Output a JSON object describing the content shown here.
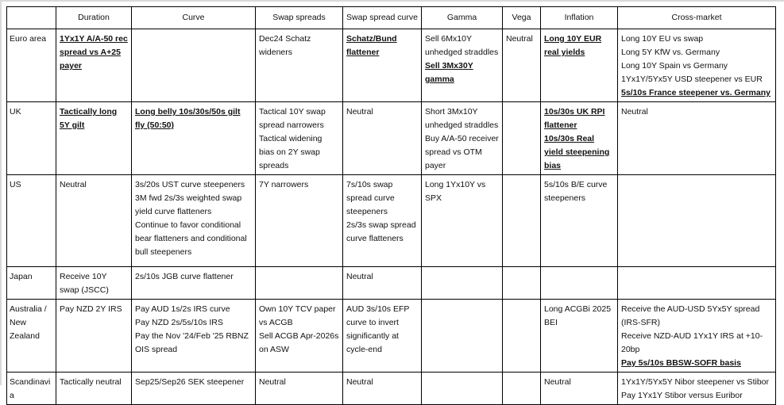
{
  "headers": [
    "",
    "Duration",
    "Curve",
    "Swap spreads",
    "Swap spread curve",
    "Gamma",
    "Vega",
    "Inflation",
    "Cross-market"
  ],
  "rows": [
    {
      "region": "Euro area",
      "cells": [
        [
          {
            "text": "1Yx1Y A/A-50 rec spread vs A+25 payer",
            "bold": true
          }
        ],
        [],
        [
          {
            "text": "Dec24 Schatz wideners",
            "bold": false
          }
        ],
        [
          {
            "text": "Schatz/Bund flattener",
            "bold": true
          }
        ],
        [
          {
            "text": "Sell 6Mx10Y unhedged straddles",
            "bold": false
          },
          {
            "text": "Sell 3Mx30Y gamma",
            "bold": true
          }
        ],
        [
          {
            "text": "Neutral",
            "bold": false
          }
        ],
        [
          {
            "text": "Long 10Y EUR real yields",
            "bold": true
          }
        ],
        [
          {
            "text": "Long 10Y EU vs swap",
            "bold": false
          },
          {
            "text": "Long 5Y KfW vs. Germany",
            "bold": false
          },
          {
            "text": "Long 10Y Spain vs Germany",
            "bold": false
          },
          {
            "text": "1Yx1Y/5Yx5Y USD steepener vs EUR",
            "bold": false
          },
          {
            "text": "5s/10s France steepener vs. Germany",
            "bold": true
          }
        ]
      ]
    },
    {
      "region": "UK",
      "cells": [
        [
          {
            "text": "Tactically long 5Y gilt",
            "bold": true
          }
        ],
        [
          {
            "text": "Long belly 10s/30s/50s gilt fly (50:50)",
            "bold": true
          }
        ],
        [
          {
            "text": "Tactical 10Y swap spread narrowers",
            "bold": false
          },
          {
            "text": "Tactical widening bias on 2Y swap spreads",
            "bold": false
          }
        ],
        [
          {
            "text": "Neutral",
            "bold": false
          }
        ],
        [
          {
            "text": "Short 3Mx10Y unhedged straddles",
            "bold": false
          },
          {
            "text": "Buy A/A-50 receiver spread vs OTM payer",
            "bold": false
          }
        ],
        [],
        [
          {
            "text": "10s/30s UK RPI flattener",
            "bold": true
          },
          {
            "text": "10s/30s Real yield steepening bias",
            "bold": true
          }
        ],
        [
          {
            "text": "Neutral",
            "bold": false
          }
        ]
      ]
    },
    {
      "region": "US",
      "cells": [
        [
          {
            "text": "Neutral",
            "bold": false
          }
        ],
        [
          {
            "text": "3s/20s UST curve steepeners",
            "bold": false
          },
          {
            "text": "3M fwd 2s/3s weighted swap yield curve flatteners",
            "bold": false
          },
          {
            "text": "Continue to favor conditional bear flatteners and conditional bull steepeners",
            "bold": false
          }
        ],
        [
          {
            "text": "7Y narrowers",
            "bold": false
          }
        ],
        [
          {
            "text": "7s/10s swap spread curve steepeners",
            "bold": false
          },
          {
            "text": "2s/3s swap spread curve flatteners",
            "bold": false
          }
        ],
        [
          {
            "text": "Long 1Yx10Y vs SPX",
            "bold": false
          }
        ],
        [],
        [
          {
            "text": "5s/10s B/E curve steepeners",
            "bold": false
          }
        ],
        []
      ]
    },
    {
      "region": "Japan",
      "cells": [
        [
          {
            "text": "Receive 10Y swap (JSCC)",
            "bold": false
          }
        ],
        [
          {
            "text": "2s/10s JGB curve flattener",
            "bold": false
          }
        ],
        [],
        [
          {
            "text": "Neutral",
            "bold": false
          }
        ],
        [],
        [],
        [],
        []
      ]
    },
    {
      "region": "Australia / New Zealand",
      "cells": [
        [
          {
            "text": "Pay NZD 2Y IRS",
            "bold": false
          }
        ],
        [
          {
            "text": "Pay AUD 1s/2s IRS curve",
            "bold": false
          },
          {
            "text": "Pay NZD 2s/5s/10s IRS",
            "bold": false
          },
          {
            "text": "Pay the Nov '24/Feb '25 RBNZ OIS spread",
            "bold": false
          }
        ],
        [
          {
            "text": "Own 10Y TCV paper vs ACGB",
            "bold": false
          },
          {
            "text": "Sell ACGB Apr-2026s on ASW",
            "bold": false
          }
        ],
        [
          {
            "text": "AUD 3s/10s EFP curve to invert significantly at cycle-end",
            "bold": false
          }
        ],
        [],
        [],
        [
          {
            "text": "Long ACGBi 2025 BEI",
            "bold": false
          }
        ],
        [
          {
            "text": "Receive the AUD-USD 5Yx5Y spread (IRS-SFR)",
            "bold": false
          },
          {
            "text": "Receive NZD-AUD 1Yx1Y IRS at +10-20bp",
            "bold": false
          },
          {
            "text": "Pay 5s/10s BBSW-SOFR basis",
            "bold": true
          }
        ]
      ]
    },
    {
      "region": "Scandinavia",
      "cells": [
        [
          {
            "text": "Tactically neutral",
            "bold": false
          }
        ],
        [
          {
            "text": "Sep25/Sep26 SEK steepener",
            "bold": false
          }
        ],
        [
          {
            "text": "Neutral",
            "bold": false
          }
        ],
        [
          {
            "text": "Neutral",
            "bold": false
          }
        ],
        [],
        [],
        [
          {
            "text": "Neutral",
            "bold": false
          }
        ],
        [
          {
            "text": "1Yx1Y/5Yx5Y Nibor steepener vs Stibor",
            "bold": false
          },
          {
            "text": "Pay 1Yx1Y Stibor versus Euribor",
            "bold": false
          }
        ]
      ]
    }
  ]
}
